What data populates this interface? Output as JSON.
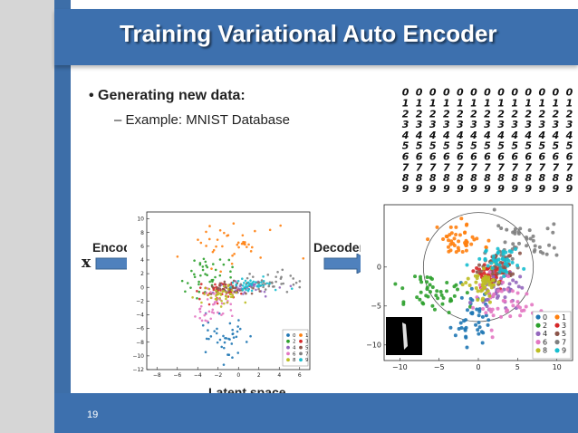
{
  "slide": {
    "title": "Training Variational Auto Encoder",
    "bullet_main": "Generating new data:",
    "bullet_sub": "Example: MNIST Database",
    "encoder_label": "Encoder",
    "decoder_label": "Decoder",
    "input_symbol": "x",
    "latent_label": "Latent space",
    "page_number": "19"
  },
  "colors": {
    "accent": "#3d70ae",
    "arrow": "#4f81bd",
    "digits": [
      "#1f77b4",
      "#ff7f0e",
      "#2ca02c",
      "#d62728",
      "#9467bd",
      "#8c564b",
      "#e377c2",
      "#7f7f7f",
      "#bcbd22",
      "#17becf"
    ]
  },
  "digits_grid": {
    "rows": [
      "0000000000000",
      "1111111111111",
      "2222222222222",
      "3333333333333",
      "4444444444444",
      "5555555555555",
      "6666666666666",
      "7777777777777",
      "8888888888888",
      "9999999999999"
    ]
  },
  "chart_data": [
    {
      "type": "scatter",
      "xlim": [
        -9,
        7
      ],
      "ylim": [
        -12,
        11
      ],
      "xticks": [
        "-8",
        "-6",
        "-4",
        "-2",
        "0",
        "2",
        "4",
        "6"
      ],
      "yticks": [
        "10",
        "8",
        "6",
        "4",
        "2",
        "0",
        "-2",
        "-4",
        "-6",
        "-8",
        "-10",
        "-12"
      ],
      "legend": [
        "0",
        "1",
        "2",
        "3",
        "4",
        "5",
        "6",
        "7",
        "8",
        "9"
      ],
      "legend_position": "bottom-right",
      "grid": false,
      "clusters": [
        {
          "label": "0",
          "cx": -1.5,
          "cy": -7.5,
          "sx": 1.0,
          "sy": 2.0
        },
        {
          "label": "1",
          "cx": -0.5,
          "cy": 6.5,
          "sx": 2.2,
          "sy": 1.5
        },
        {
          "label": "2",
          "cx": -3.0,
          "cy": 1.5,
          "sx": 1.2,
          "sy": 1.5
        },
        {
          "label": "3",
          "cx": -2.0,
          "cy": -0.5,
          "sx": 1.2,
          "sy": 0.7
        },
        {
          "label": "4",
          "cx": 0.5,
          "cy": 0.0,
          "sx": 1.5,
          "sy": 0.6
        },
        {
          "label": "5",
          "cx": -1.0,
          "cy": -0.2,
          "sx": 1.0,
          "sy": 0.5
        },
        {
          "label": "6",
          "cx": -2.5,
          "cy": -3.0,
          "sx": 1.0,
          "sy": 1.2
        },
        {
          "label": "7",
          "cx": 3.5,
          "cy": 0.8,
          "sx": 1.5,
          "sy": 0.7
        },
        {
          "label": "8",
          "cx": -1.5,
          "cy": -1.0,
          "sx": 1.0,
          "sy": 0.8
        },
        {
          "label": "9",
          "cx": 1.5,
          "cy": 0.5,
          "sx": 1.2,
          "sy": 0.5
        }
      ]
    },
    {
      "type": "scatter",
      "xlim": [
        -12,
        12
      ],
      "ylim": [
        -12,
        8
      ],
      "xticks": [
        "-10",
        "-5",
        "0",
        "5",
        "10"
      ],
      "yticks": [
        "0",
        "-5",
        "-10"
      ],
      "legend": [
        "0",
        "1",
        "2",
        "3",
        "4",
        "5",
        "6",
        "7",
        "8",
        "9"
      ],
      "legend_position": "bottom-right",
      "grid": false,
      "clusters": [
        {
          "label": "0",
          "cx": -0.5,
          "cy": -6.0,
          "sx": 1.2,
          "sy": 2.5
        },
        {
          "label": "1",
          "cx": -2.5,
          "cy": 3.5,
          "sx": 1.6,
          "sy": 1.0
        },
        {
          "label": "2",
          "cx": -5.5,
          "cy": -3.5,
          "sx": 1.8,
          "sy": 1.5
        },
        {
          "label": "3",
          "cx": 1.5,
          "cy": -1.0,
          "sx": 1.2,
          "sy": 1.0
        },
        {
          "label": "4",
          "cx": 3.0,
          "cy": -2.5,
          "sx": 1.5,
          "sy": 1.2
        },
        {
          "label": "5",
          "cx": 2.5,
          "cy": 0.0,
          "sx": 1.2,
          "sy": 1.0
        },
        {
          "label": "6",
          "cx": 3.0,
          "cy": -4.5,
          "sx": 1.8,
          "sy": 1.5
        },
        {
          "label": "7",
          "cx": 6.5,
          "cy": 3.0,
          "sx": 2.5,
          "sy": 1.5
        },
        {
          "label": "8",
          "cx": 0.5,
          "cy": -2.0,
          "sx": 1.2,
          "sy": 1.0
        },
        {
          "label": "9",
          "cx": 2.5,
          "cy": 1.0,
          "sx": 1.5,
          "sy": 1.0
        }
      ]
    }
  ]
}
